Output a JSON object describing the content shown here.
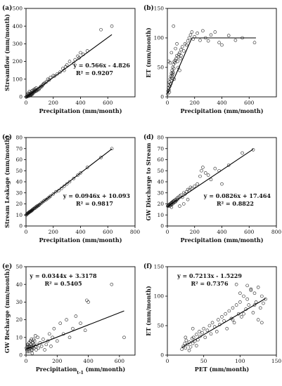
{
  "chart_data": [
    {
      "id": "a",
      "type": "scatter",
      "panel_label": "(a)",
      "xlabel": "Precipitation (mm/month)",
      "ylabel": "Streamflow (mm/month)",
      "xlim": [
        0,
        800
      ],
      "ylim": [
        0,
        500
      ],
      "xticks": [
        0,
        200,
        400,
        600
      ],
      "yticks": [
        0,
        100,
        200,
        300,
        400,
        500
      ],
      "equation": "y = 0.566x - 4.826",
      "r2": "R² = 0.9207",
      "fit": {
        "type": "linear",
        "x": [
          5,
          630
        ],
        "y": [
          0,
          352
        ]
      },
      "points": {
        "x": [
          2,
          5,
          8,
          10,
          12,
          15,
          18,
          20,
          22,
          25,
          28,
          30,
          32,
          35,
          38,
          40,
          42,
          45,
          48,
          50,
          55,
          60,
          65,
          70,
          75,
          80,
          85,
          90,
          95,
          100,
          105,
          110,
          115,
          120,
          125,
          130,
          140,
          150,
          160,
          170,
          180,
          200,
          210,
          230,
          250,
          270,
          280,
          290,
          300,
          320,
          350,
          360,
          380,
          390,
          400,
          420,
          450,
          550,
          630,
          8,
          15,
          25,
          35,
          45,
          55,
          65,
          75,
          20,
          30,
          40,
          50,
          60,
          70
        ],
        "y": [
          0,
          2,
          1,
          3,
          5,
          4,
          6,
          8,
          5,
          10,
          7,
          12,
          9,
          15,
          11,
          18,
          14,
          20,
          16,
          22,
          25,
          28,
          30,
          35,
          32,
          40,
          38,
          45,
          42,
          50,
          55,
          60,
          58,
          65,
          70,
          75,
          80,
          85,
          100,
          95,
          110,
          120,
          118,
          130,
          140,
          160,
          150,
          170,
          180,
          200,
          190,
          210,
          230,
          220,
          250,
          240,
          260,
          380,
          400,
          12,
          20,
          30,
          25,
          35,
          40,
          45,
          50,
          15,
          18,
          22,
          28,
          32,
          38
        ]
      }
    },
    {
      "id": "b",
      "type": "scatter",
      "panel_label": "(b)",
      "xlabel": "Precipitation (mm/month)",
      "ylabel": "ET (mm/month)",
      "xlim": [
        0,
        800
      ],
      "ylim": [
        0,
        150
      ],
      "xticks": [
        0,
        200,
        400,
        600
      ],
      "yticks": [
        0,
        50,
        100,
        150
      ],
      "equation": "",
      "r2": "",
      "fit": {
        "type": "piecewise",
        "x": [
          0,
          180,
          650
        ],
        "y": [
          5,
          100,
          100
        ]
      },
      "points": {
        "x": [
          2,
          5,
          8,
          10,
          12,
          15,
          18,
          20,
          22,
          25,
          28,
          30,
          32,
          35,
          38,
          40,
          42,
          45,
          48,
          50,
          55,
          60,
          65,
          70,
          75,
          80,
          85,
          90,
          95,
          100,
          110,
          120,
          130,
          140,
          150,
          160,
          170,
          180,
          190,
          200,
          220,
          240,
          260,
          280,
          300,
          320,
          350,
          380,
          400,
          450,
          500,
          550,
          640,
          10,
          20,
          30,
          40,
          50,
          60,
          70,
          80,
          90,
          100,
          15,
          25,
          35,
          45
        ],
        "y": [
          5,
          10,
          15,
          20,
          12,
          25,
          18,
          30,
          22,
          35,
          28,
          40,
          32,
          45,
          38,
          50,
          42,
          55,
          48,
          60,
          58,
          62,
          65,
          70,
          60,
          68,
          72,
          75,
          65,
          80,
          85,
          78,
          90,
          88,
          95,
          100,
          105,
          110,
          98,
          102,
          108,
          96,
          112,
          100,
          95,
          105,
          110,
          92,
          88,
          104,
          96,
          100,
          92,
          60,
          58,
          75,
          40,
          30,
          82,
          90,
          50,
          45,
          70,
          8,
          22,
          35,
          120
        ]
      }
    },
    {
      "id": "c",
      "type": "scatter",
      "panel_label": "(c)",
      "xlabel": "Precipitation (mm/month)",
      "ylabel": "Stream Leakage (mm/month)",
      "xlim": [
        0,
        800
      ],
      "ylim": [
        0,
        80
      ],
      "xticks": [
        0,
        200,
        400,
        600,
        800
      ],
      "yticks": [
        0,
        10,
        20,
        30,
        40,
        50,
        60,
        70,
        80
      ],
      "equation": "y = 0.0946x + 10.093",
      "r2": "R² = 0.9817",
      "fit": {
        "type": "linear",
        "x": [
          0,
          630
        ],
        "y": [
          10.1,
          69.7
        ]
      },
      "points": {
        "x": [
          2,
          5,
          8,
          10,
          12,
          15,
          18,
          20,
          22,
          25,
          28,
          30,
          32,
          35,
          38,
          40,
          42,
          45,
          48,
          50,
          55,
          60,
          65,
          70,
          75,
          80,
          85,
          90,
          95,
          100,
          110,
          120,
          130,
          140,
          150,
          160,
          170,
          180,
          200,
          220,
          240,
          260,
          280,
          300,
          320,
          350,
          380,
          400,
          450,
          550,
          630
        ],
        "y": [
          10,
          10.5,
          11,
          11,
          11.5,
          11.5,
          12,
          12,
          12.5,
          12.5,
          13,
          13,
          13,
          13.5,
          13.5,
          14,
          14,
          14.5,
          14.5,
          15,
          15.5,
          16,
          16,
          17,
          17,
          18,
          18,
          18.5,
          19,
          19.5,
          20.5,
          21.5,
          22.5,
          23.5,
          24,
          25,
          26,
          27,
          29,
          31,
          32,
          34,
          36,
          38,
          40,
          43,
          46,
          48,
          53,
          62,
          70
        ]
      }
    },
    {
      "id": "d",
      "type": "scatter",
      "panel_label": "(d)",
      "xlabel": "Precipitation (mm/month)",
      "ylabel": "GW Discharge to Stream",
      "xlim": [
        0,
        800
      ],
      "ylim": [
        0,
        80
      ],
      "xticks": [
        0,
        200,
        400,
        600,
        800
      ],
      "yticks": [
        0,
        10,
        20,
        30,
        40,
        50,
        60,
        70,
        80
      ],
      "equation": "y = 0.0826x + 17.464",
      "r2": "R² = 0.8822",
      "fit": {
        "type": "linear",
        "x": [
          0,
          630
        ],
        "y": [
          17.5,
          69.5
        ]
      },
      "points": {
        "x": [
          2,
          5,
          8,
          10,
          12,
          15,
          18,
          20,
          22,
          25,
          28,
          30,
          32,
          35,
          38,
          40,
          42,
          45,
          48,
          50,
          55,
          60,
          65,
          70,
          75,
          80,
          90,
          100,
          110,
          120,
          130,
          140,
          150,
          160,
          170,
          180,
          200,
          220,
          240,
          250,
          260,
          280,
          300,
          320,
          350,
          380,
          400,
          450,
          550,
          630,
          30,
          60,
          90,
          120,
          150
        ],
        "y": [
          18,
          18,
          18.5,
          19,
          19,
          19.5,
          18,
          20,
          19,
          20.5,
          19,
          21,
          20,
          21.5,
          20,
          22,
          21,
          22.5,
          21,
          23,
          22,
          24,
          23,
          25,
          24,
          26,
          27,
          28,
          26,
          30,
          29,
          31,
          33,
          32,
          35,
          34,
          36,
          38,
          45,
          50,
          53,
          48,
          46,
          42,
          52,
          50,
          38,
          55,
          66,
          69,
          17,
          22,
          18,
          20,
          24
        ]
      }
    },
    {
      "id": "e",
      "type": "scatter",
      "panel_label": "(e)",
      "xlabel": "Precipitation",
      "xlabel_sub": "t-1",
      "xlabel_rest": " (mm/month)",
      "ylabel": "GW Recharge (mm/month)",
      "xlim": [
        0,
        700
      ],
      "ylim": [
        0,
        50
      ],
      "xticks": [
        0,
        200,
        400,
        600
      ],
      "yticks": [
        0,
        10,
        20,
        30,
        40,
        50
      ],
      "equation": "y = 0.0344x + 3.3178",
      "r2": "R² = 0.5405",
      "fit": {
        "type": "linear",
        "x": [
          0,
          630
        ],
        "y": [
          3.3,
          25
        ]
      },
      "points": {
        "x": [
          2,
          5,
          8,
          10,
          12,
          15,
          18,
          20,
          22,
          25,
          28,
          30,
          32,
          35,
          38,
          40,
          42,
          45,
          48,
          50,
          55,
          60,
          65,
          70,
          75,
          80,
          90,
          100,
          110,
          120,
          130,
          140,
          150,
          160,
          170,
          180,
          200,
          220,
          240,
          260,
          280,
          300,
          320,
          350,
          380,
          390,
          400,
          550,
          630,
          10,
          20,
          30,
          40,
          50,
          60,
          15,
          25,
          35,
          45
        ],
        "y": [
          4,
          3,
          5,
          2,
          6,
          4,
          3,
          7,
          5,
          4,
          8,
          6,
          5,
          9,
          4,
          3,
          7,
          5,
          6,
          4,
          8,
          5,
          3,
          6,
          10,
          4,
          7,
          5,
          9,
          3,
          6,
          8,
          12,
          5,
          10,
          15,
          8,
          18,
          12,
          20,
          10,
          15,
          22,
          18,
          14,
          31,
          30,
          40,
          10,
          6,
          2,
          8,
          1,
          9,
          11,
          5,
          4,
          3,
          7
        ]
      }
    },
    {
      "id": "f",
      "type": "scatter",
      "panel_label": "(f)",
      "xlabel": "PET (mm/month)",
      "ylabel": "ET (mm/month)",
      "xlim": [
        0,
        150
      ],
      "ylim": [
        0,
        150
      ],
      "xticks": [
        0,
        50,
        100,
        150
      ],
      "yticks": [
        0,
        50,
        100,
        150
      ],
      "equation": "y = 0.7213x - 1.5229",
      "r2": "R² = 0.7376",
      "fit": {
        "type": "linear",
        "x": [
          20,
          135
        ],
        "y": [
          13,
          96
        ]
      },
      "points": {
        "x": [
          20,
          22,
          24,
          25,
          26,
          28,
          30,
          32,
          34,
          35,
          36,
          38,
          40,
          42,
          44,
          45,
          48,
          50,
          52,
          55,
          58,
          60,
          62,
          65,
          68,
          70,
          72,
          75,
          78,
          80,
          82,
          85,
          88,
          90,
          92,
          95,
          98,
          100,
          102,
          105,
          108,
          110,
          112,
          115,
          118,
          120,
          122,
          125,
          128,
          130,
          132,
          135,
          25,
          30,
          35,
          40,
          90,
          95,
          100,
          105,
          110,
          115,
          120,
          125,
          130
        ],
        "y": [
          10,
          15,
          20,
          12,
          25,
          18,
          22,
          14,
          28,
          20,
          30,
          24,
          35,
          26,
          40,
          32,
          38,
          45,
          30,
          42,
          50,
          36,
          55,
          48,
          40,
          60,
          52,
          65,
          58,
          70,
          45,
          75,
          62,
          80,
          55,
          85,
          70,
          90,
          65,
          100,
          78,
          95,
          85,
          110,
          72,
          105,
          90,
          115,
          80,
          100,
          88,
          95,
          30,
          8,
          45,
          16,
          60,
          120,
          105,
          70,
          118,
          112,
          85,
          60,
          55
        ]
      }
    }
  ]
}
